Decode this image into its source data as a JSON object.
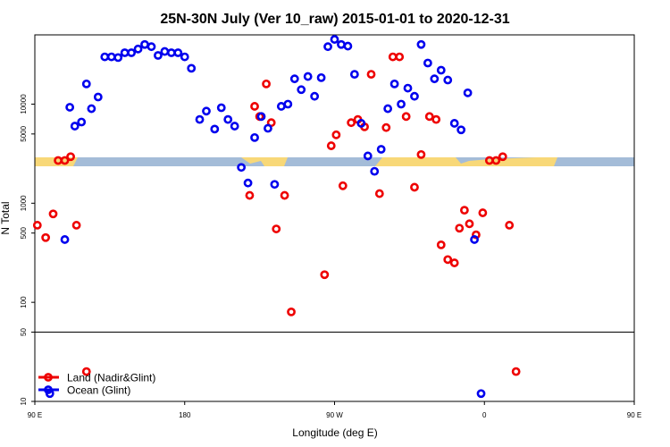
{
  "chart_data": {
    "type": "scatter",
    "title": "25N-30N July (Ver 10_raw)   2015-01-01 to 2020-12-31",
    "xlabel": "Longitude (deg E)",
    "ylabel": "N Total",
    "xlim": [
      90,
      450
    ],
    "y_scale": "log",
    "ylim": [
      10,
      50000
    ],
    "x_ticks": [
      {
        "value": 90,
        "label": "90 E"
      },
      {
        "value": 180,
        "label": "180"
      },
      {
        "value": 270,
        "label": "90 W"
      },
      {
        "value": 360,
        "label": "0"
      },
      {
        "value": 450,
        "label": "90 E"
      },
      {
        "value": 540,
        "label": "180"
      }
    ],
    "y_ticks": [
      {
        "value": 10,
        "label": "10"
      },
      {
        "value": 50,
        "label": "50"
      },
      {
        "value": 100,
        "label": "100"
      },
      {
        "value": 500,
        "label": "500"
      },
      {
        "value": 1000,
        "label": "1000"
      },
      {
        "value": 5000,
        "label": "5000"
      },
      {
        "value": 10000,
        "label": "10000"
      }
    ],
    "reference_line": 50,
    "map_strip": {
      "land_color": "#f8d878",
      "ocean_color": "#a4bcd8"
    },
    "legend_position": "bottom-left",
    "series": [
      {
        "name": "Land (Nadir&Glint)",
        "color": "#ee0000",
        "points": [
          [
            91.5,
            600
          ],
          [
            96.5,
            450
          ],
          [
            101,
            780
          ],
          [
            104,
            2700
          ],
          [
            108,
            2700
          ],
          [
            111.5,
            2950
          ],
          [
            115,
            600
          ],
          [
            121,
            20
          ],
          [
            219,
            1200
          ],
          [
            222,
            9500
          ],
          [
            225,
            7500
          ],
          [
            229,
            16000
          ],
          [
            232,
            6500
          ],
          [
            235,
            550
          ],
          [
            240,
            1200
          ],
          [
            244,
            80
          ],
          [
            264,
            190
          ],
          [
            268,
            3800
          ],
          [
            271,
            4900
          ],
          [
            275,
            1500
          ],
          [
            280,
            6500
          ],
          [
            284,
            7000
          ],
          [
            288,
            5900
          ],
          [
            292,
            20000
          ],
          [
            297,
            1250
          ],
          [
            301,
            5800
          ],
          [
            305,
            30000
          ],
          [
            309,
            30000
          ],
          [
            313,
            7500
          ],
          [
            318,
            1450
          ],
          [
            322,
            3100
          ],
          [
            327,
            7500
          ],
          [
            331,
            7000
          ],
          [
            334,
            380
          ],
          [
            338,
            270
          ],
          [
            342,
            250
          ],
          [
            345,
            560
          ],
          [
            348,
            850
          ],
          [
            351,
            620
          ],
          [
            355,
            480
          ],
          [
            359,
            800
          ],
          [
            363,
            2700
          ],
          [
            367,
            2700
          ],
          [
            371,
            2950
          ],
          [
            375,
            600
          ],
          [
            379,
            20
          ]
        ]
      },
      {
        "name": "Ocean (Glint)",
        "color": "#0000ee",
        "points": [
          [
            99,
            12
          ],
          [
            108,
            430
          ],
          [
            111,
            9300
          ],
          [
            114,
            6000
          ],
          [
            118,
            6600
          ],
          [
            121,
            16000
          ],
          [
            124,
            9000
          ],
          [
            128,
            11800
          ],
          [
            132,
            30000
          ],
          [
            136,
            30000
          ],
          [
            140,
            29500
          ],
          [
            144,
            33000
          ],
          [
            148,
            33000
          ],
          [
            152,
            36000
          ],
          [
            156,
            40000
          ],
          [
            160,
            38000
          ],
          [
            164,
            31000
          ],
          [
            168,
            34000
          ],
          [
            172,
            33000
          ],
          [
            176,
            33000
          ],
          [
            180,
            30000
          ],
          [
            184,
            23000
          ],
          [
            189,
            7000
          ],
          [
            193,
            8500
          ],
          [
            198,
            5600
          ],
          [
            202,
            9200
          ],
          [
            206,
            7000
          ],
          [
            210,
            6000
          ],
          [
            214,
            2300
          ],
          [
            218,
            1600
          ],
          [
            222,
            4600
          ],
          [
            226,
            7500
          ],
          [
            230,
            5700
          ],
          [
            234,
            1550
          ],
          [
            238,
            9500
          ],
          [
            242,
            10000
          ],
          [
            246,
            18000
          ],
          [
            250,
            14000
          ],
          [
            254,
            19000
          ],
          [
            258,
            12000
          ],
          [
            262,
            18500
          ],
          [
            266,
            38000
          ],
          [
            270,
            45000
          ],
          [
            274,
            40000
          ],
          [
            278,
            38500
          ],
          [
            282,
            20000
          ],
          [
            286,
            6400
          ],
          [
            290,
            3000
          ],
          [
            294,
            2100
          ],
          [
            298,
            3500
          ],
          [
            302,
            9000
          ],
          [
            306,
            16000
          ],
          [
            310,
            10000
          ],
          [
            314,
            14500
          ],
          [
            318,
            12000
          ],
          [
            322,
            40000
          ],
          [
            326,
            26000
          ],
          [
            330,
            18000
          ],
          [
            334,
            22000
          ],
          [
            338,
            17500
          ],
          [
            342,
            6400
          ],
          [
            346,
            5500
          ],
          [
            350,
            13000
          ],
          [
            354,
            430
          ],
          [
            358,
            12
          ]
        ]
      }
    ]
  }
}
